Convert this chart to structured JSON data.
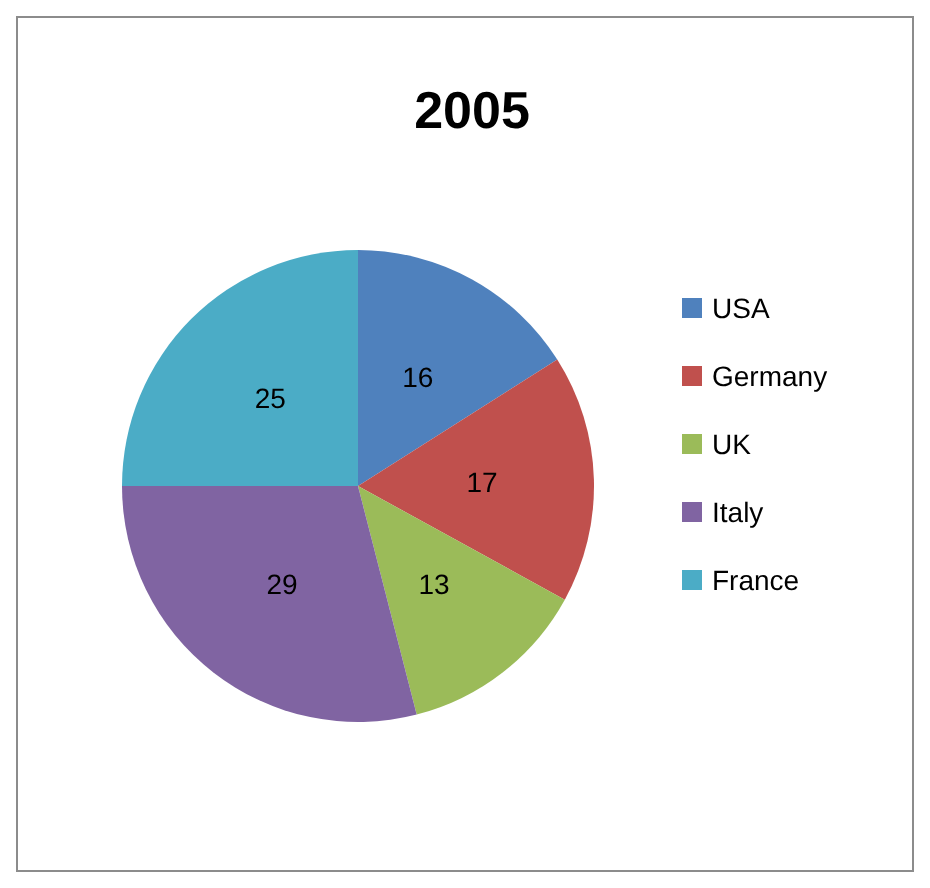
{
  "chart_data": {
    "type": "pie",
    "title": "2005",
    "categories": [
      "USA",
      "Germany",
      "UK",
      "Italy",
      "France"
    ],
    "values": [
      16,
      17,
      13,
      29,
      25
    ],
    "colors": [
      "#4f81bd",
      "#c0504d",
      "#9bbb59",
      "#8064a2",
      "#4bacc6"
    ],
    "data_labels": true,
    "legend": "right"
  }
}
